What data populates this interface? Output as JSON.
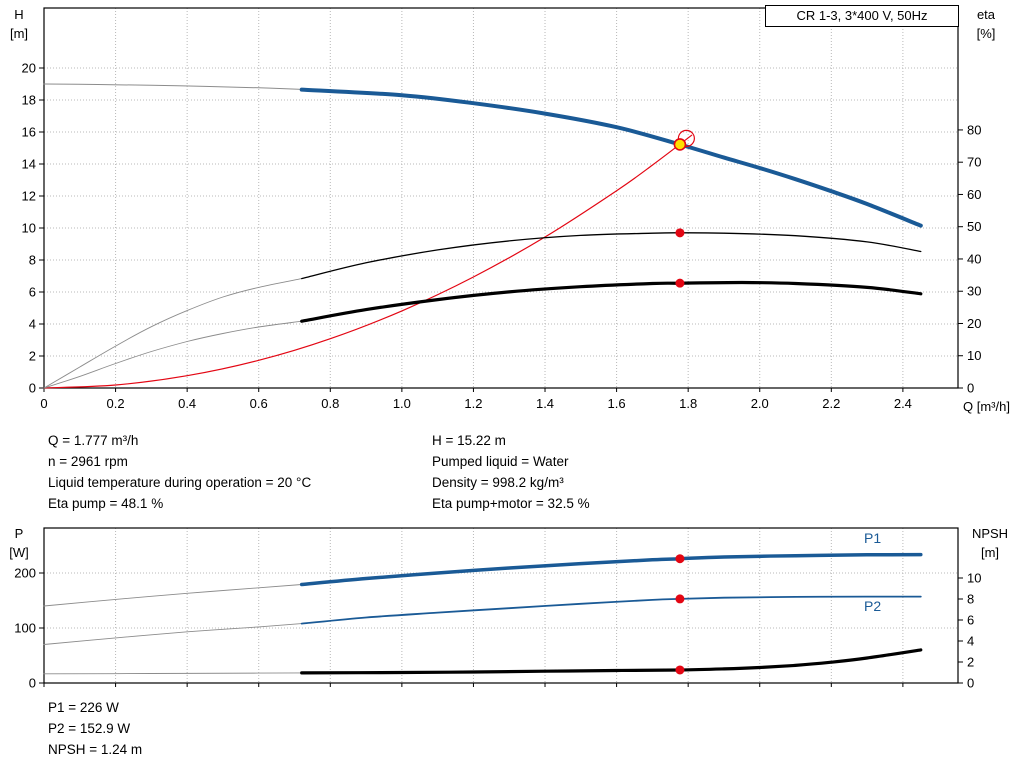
{
  "colors": {
    "curve_blue": "#1a5a96",
    "marker_red": "#e30613",
    "duty_yellow": "#ffdf00",
    "gray": "#8c8c8c",
    "grid": "#b8b8b8"
  },
  "info_top_left": [
    "Q = 1.777 m³/h",
    "n = 2961 rpm",
    "Liquid temperature during operation = 20 °C",
    "Eta pump = 48.1 %"
  ],
  "info_top_right": [
    "H = 15.22 m",
    "Pumped liquid = Water",
    "Density = 998.2 kg/m³",
    "Eta pump+motor = 32.5 %"
  ],
  "info_bottom": [
    "P1 = 226 W",
    "P2 = 152.9 W",
    "NPSH = 1.24 m"
  ],
  "chart_data": [
    {
      "name": "qh-eta-chart",
      "type": "line",
      "title": "CR 1-3, 3*400 V, 50Hz",
      "layout": {
        "plot": [
          44,
          8,
          958,
          388
        ]
      },
      "axes": {
        "x": {
          "title": "Q [m³/h]",
          "range": [
            0,
            2.554
          ],
          "show_labels": true,
          "ticks": [
            [
              0,
              "0"
            ],
            [
              0.2,
              "0.2"
            ],
            [
              0.4,
              "0.4"
            ],
            [
              0.6,
              "0.6"
            ],
            [
              0.8,
              "0.8"
            ],
            [
              1.0,
              "1.0"
            ],
            [
              1.2,
              "1.2"
            ],
            [
              1.4,
              "1.4"
            ],
            [
              1.6,
              "1.6"
            ],
            [
              1.8,
              "1.8"
            ],
            [
              2.0,
              "2.0"
            ],
            [
              2.2,
              "2.2"
            ],
            [
              2.4,
              "2.4"
            ]
          ]
        },
        "left": {
          "title": [
            "H",
            "[m]"
          ],
          "range": [
            0,
            23.75
          ],
          "ticks": [
            [
              0,
              "0"
            ],
            [
              2,
              "2"
            ],
            [
              4,
              "4"
            ],
            [
              6,
              "6"
            ],
            [
              8,
              "8"
            ],
            [
              10,
              "10"
            ],
            [
              12,
              "12"
            ],
            [
              14,
              "14"
            ],
            [
              16,
              "16"
            ],
            [
              18,
              "18"
            ],
            [
              20,
              "20"
            ]
          ]
        },
        "right": {
          "title": [
            "eta",
            "[%]"
          ],
          "range": [
            0,
            117.8
          ],
          "ticks": [
            [
              0,
              "0"
            ],
            [
              10,
              "10"
            ],
            [
              20,
              "20"
            ],
            [
              30,
              "30"
            ],
            [
              40,
              "40"
            ],
            [
              50,
              "50"
            ],
            [
              60,
              "60"
            ],
            [
              70,
              "70"
            ],
            [
              80,
              "80"
            ]
          ]
        }
      },
      "series": [
        {
          "name": "qh-curve-extension",
          "axis": "left",
          "color": "#8c8c8c",
          "width": 1,
          "pts": [
            [
              0,
              19.0
            ],
            [
              0.15,
              18.97
            ],
            [
              0.3,
              18.92
            ],
            [
              0.45,
              18.85
            ],
            [
              0.6,
              18.76
            ],
            [
              0.72,
              18.66
            ]
          ]
        },
        {
          "name": "system-curve",
          "axis": "left",
          "color": "#e30613",
          "width": 1.2,
          "pts": [
            [
              0,
              0
            ],
            [
              0.2,
              0.19
            ],
            [
              0.4,
              0.77
            ],
            [
              0.6,
              1.73
            ],
            [
              0.8,
              3.08
            ],
            [
              1.0,
              4.82
            ],
            [
              1.2,
              6.94
            ],
            [
              1.4,
              9.44
            ],
            [
              1.6,
              12.33
            ],
            [
              1.7,
              13.93
            ],
            [
              1.81,
              15.8
            ]
          ]
        },
        {
          "name": "eta-pump-extension",
          "axis": "right",
          "color": "#8c8c8c",
          "width": 0.9,
          "pts": [
            [
              0,
              0
            ],
            [
              0.1,
              6.5
            ],
            [
              0.2,
              13
            ],
            [
              0.3,
              19
            ],
            [
              0.4,
              24
            ],
            [
              0.5,
              28.2
            ],
            [
              0.6,
              31.2
            ],
            [
              0.72,
              33.9
            ]
          ]
        },
        {
          "name": "eta-pump-motor-extension",
          "axis": "right",
          "color": "#8c8c8c",
          "width": 0.9,
          "pts": [
            [
              0,
              0
            ],
            [
              0.1,
              3.6
            ],
            [
              0.2,
              7.6
            ],
            [
              0.3,
              11.3
            ],
            [
              0.4,
              14.4
            ],
            [
              0.5,
              16.9
            ],
            [
              0.6,
              18.9
            ],
            [
              0.72,
              20.7
            ]
          ]
        },
        {
          "name": "qh-curve",
          "axis": "left",
          "color": "#1a5a96",
          "width": 4,
          "pts": [
            [
              0.72,
              18.65
            ],
            [
              1.0,
              18.3
            ],
            [
              1.2,
              17.8
            ],
            [
              1.4,
              17.15
            ],
            [
              1.6,
              16.3
            ],
            [
              1.777,
              15.22
            ],
            [
              1.9,
              14.4
            ],
            [
              2.0,
              13.75
            ],
            [
              2.1,
              13.05
            ],
            [
              2.2,
              12.3
            ],
            [
              2.3,
              11.5
            ],
            [
              2.45,
              10.15
            ]
          ]
        },
        {
          "name": "eta-pump-curve",
          "axis": "right",
          "color": "#000000",
          "width": 1.3,
          "pts": [
            [
              0.72,
              33.9
            ],
            [
              0.9,
              38.8
            ],
            [
              1.1,
              42.8
            ],
            [
              1.3,
              45.6
            ],
            [
              1.5,
              47.3
            ],
            [
              1.7,
              48.0
            ],
            [
              1.777,
              48.1
            ],
            [
              1.9,
              48.0
            ],
            [
              2.1,
              47.2
            ],
            [
              2.3,
              45.3
            ],
            [
              2.45,
              42.3
            ]
          ]
        },
        {
          "name": "eta-pump-motor-curve",
          "axis": "right",
          "color": "#000000",
          "width": 3.2,
          "pts": [
            [
              0.72,
              20.7
            ],
            [
              0.9,
              24.3
            ],
            [
              1.1,
              27.4
            ],
            [
              1.3,
              29.8
            ],
            [
              1.5,
              31.4
            ],
            [
              1.7,
              32.4
            ],
            [
              1.777,
              32.5
            ],
            [
              1.95,
              32.7
            ],
            [
              2.1,
              32.4
            ],
            [
              2.3,
              31.2
            ],
            [
              2.45,
              29.2
            ]
          ]
        }
      ],
      "markers": [
        {
          "name": "system-intersection-marker",
          "type": "open",
          "axis": "left",
          "x": 1.795,
          "v": 15.6
        },
        {
          "name": "duty-point-marker",
          "type": "duty",
          "axis": "left",
          "x": 1.777,
          "v": 15.22
        },
        {
          "name": "eta-pump-point-marker",
          "type": "dot",
          "axis": "right",
          "x": 1.777,
          "v": 48.1
        },
        {
          "name": "eta-pump-motor-point-marker",
          "type": "dot",
          "axis": "right",
          "x": 1.777,
          "v": 32.5
        }
      ]
    },
    {
      "name": "power-npsh-chart",
      "type": "line",
      "p1_label": "P1",
      "p2_label": "P2",
      "layout": {
        "plot": [
          44,
          528,
          958,
          683
        ]
      },
      "axes": {
        "x": {
          "title": "",
          "range": [
            0,
            2.554
          ],
          "show_labels": false,
          "ticks": [
            [
              0,
              ""
            ],
            [
              0.2,
              ""
            ],
            [
              0.4,
              ""
            ],
            [
              0.6,
              ""
            ],
            [
              0.8,
              ""
            ],
            [
              1.0,
              ""
            ],
            [
              1.2,
              ""
            ],
            [
              1.4,
              ""
            ],
            [
              1.6,
              ""
            ],
            [
              1.8,
              ""
            ],
            [
              2.0,
              ""
            ],
            [
              2.2,
              ""
            ],
            [
              2.4,
              ""
            ]
          ]
        },
        "left": {
          "title": [
            "P",
            "[W]"
          ],
          "range": [
            0,
            281.8
          ],
          "ticks": [
            [
              0,
              "0"
            ],
            [
              100,
              "100"
            ],
            [
              200,
              "200"
            ]
          ]
        },
        "right": {
          "title": [
            "NPSH",
            "[m]"
          ],
          "range": [
            0,
            14.76
          ],
          "ticks": [
            [
              0,
              "0"
            ],
            [
              2,
              "2"
            ],
            [
              4,
              "4"
            ],
            [
              6,
              "6"
            ],
            [
              8,
              "8"
            ],
            [
              10,
              "10"
            ]
          ]
        }
      },
      "series": [
        {
          "name": "p1-curve-extension",
          "axis": "left",
          "color": "#8c8c8c",
          "width": 0.9,
          "pts": [
            [
              0,
              140
            ],
            [
              0.2,
              152
            ],
            [
              0.4,
              163
            ],
            [
              0.6,
              173
            ],
            [
              0.72,
              179
            ]
          ]
        },
        {
          "name": "p2-curve-extension",
          "axis": "left",
          "color": "#8c8c8c",
          "width": 0.9,
          "pts": [
            [
              0,
              70
            ],
            [
              0.2,
              82
            ],
            [
              0.4,
              93
            ],
            [
              0.6,
              102
            ],
            [
              0.72,
              108
            ]
          ]
        },
        {
          "name": "npsh-curve-extension",
          "axis": "right",
          "color": "#8c8c8c",
          "width": 0.9,
          "pts": [
            [
              0,
              0.88
            ],
            [
              0.3,
              0.9
            ],
            [
              0.6,
              0.94
            ],
            [
              0.72,
              0.96
            ]
          ]
        },
        {
          "name": "p1-curve",
          "axis": "left",
          "color": "#1a5a96",
          "width": 3.5,
          "pts": [
            [
              0.72,
              179
            ],
            [
              0.9,
              190
            ],
            [
              1.1,
              200
            ],
            [
              1.3,
              209
            ],
            [
              1.5,
              217
            ],
            [
              1.7,
              224
            ],
            [
              1.777,
              226
            ],
            [
              1.9,
              229
            ],
            [
              2.1,
              231.5
            ],
            [
              2.3,
              233
            ],
            [
              2.45,
              233.5
            ]
          ]
        },
        {
          "name": "p2-curve",
          "axis": "left",
          "color": "#1a5a96",
          "width": 1.8,
          "pts": [
            [
              0.72,
              108
            ],
            [
              0.9,
              119
            ],
            [
              1.1,
              128
            ],
            [
              1.3,
              136
            ],
            [
              1.5,
              144
            ],
            [
              1.7,
              151
            ],
            [
              1.777,
              152.9
            ],
            [
              1.9,
              155
            ],
            [
              2.1,
              156.5
            ],
            [
              2.3,
              157
            ],
            [
              2.45,
              157
            ]
          ]
        },
        {
          "name": "npsh-curve",
          "axis": "right",
          "color": "#000000",
          "width": 3.2,
          "pts": [
            [
              0.72,
              0.96
            ],
            [
              1.0,
              1.0
            ],
            [
              1.2,
              1.05
            ],
            [
              1.4,
              1.12
            ],
            [
              1.6,
              1.19
            ],
            [
              1.777,
              1.24
            ],
            [
              1.9,
              1.34
            ],
            [
              2.0,
              1.48
            ],
            [
              2.1,
              1.68
            ],
            [
              2.2,
              1.98
            ],
            [
              2.3,
              2.38
            ],
            [
              2.45,
              3.15
            ]
          ]
        }
      ],
      "markers": [
        {
          "name": "p1-point-marker",
          "type": "dot",
          "axis": "left",
          "x": 1.777,
          "v": 226
        },
        {
          "name": "p2-point-marker",
          "type": "dot",
          "axis": "left",
          "x": 1.777,
          "v": 152.9
        },
        {
          "name": "npsh-point-marker",
          "type": "dot",
          "axis": "right",
          "x": 1.777,
          "v": 1.24
        }
      ]
    }
  ]
}
